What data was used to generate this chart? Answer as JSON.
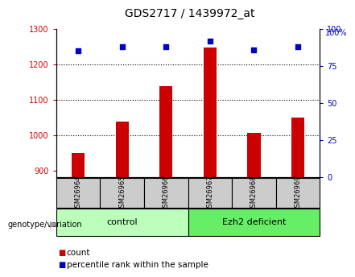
{
  "title": "GDS2717 / 1439972_at",
  "samples": [
    "GSM26964",
    "GSM26965",
    "GSM26966",
    "GSM26967",
    "GSM26968",
    "GSM26969"
  ],
  "counts": [
    948,
    1038,
    1138,
    1248,
    1005,
    1048
  ],
  "percentile_ranks": [
    85,
    88,
    88,
    92,
    86,
    88
  ],
  "ylim_left": [
    880,
    1300
  ],
  "ylim_right": [
    0,
    100
  ],
  "yticks_left": [
    900,
    1000,
    1100,
    1200,
    1300
  ],
  "yticks_right": [
    0,
    25,
    50,
    75,
    100
  ],
  "grid_yticks": [
    1000,
    1100,
    1200
  ],
  "bar_color": "#cc0000",
  "dot_color": "#0000cc",
  "control_color": "#bbffbb",
  "deficient_color": "#66ee66",
  "sample_box_color": "#cccccc",
  "tick_label_fontsize": 7,
  "title_fontsize": 10,
  "legend_fontsize": 7.5,
  "sample_fontsize": 6,
  "group_fontsize": 8,
  "genotype_fontsize": 7,
  "bar_width": 0.3,
  "genotype_label": "genotype/variation",
  "legend_count": "count",
  "legend_percentile": "percentile rank within the sample",
  "groups_info": [
    {
      "label": "control",
      "start": 0,
      "end": 2,
      "color": "#bbffbb"
    },
    {
      "label": "Ezh2 deficient",
      "start": 3,
      "end": 5,
      "color": "#66ee66"
    }
  ]
}
